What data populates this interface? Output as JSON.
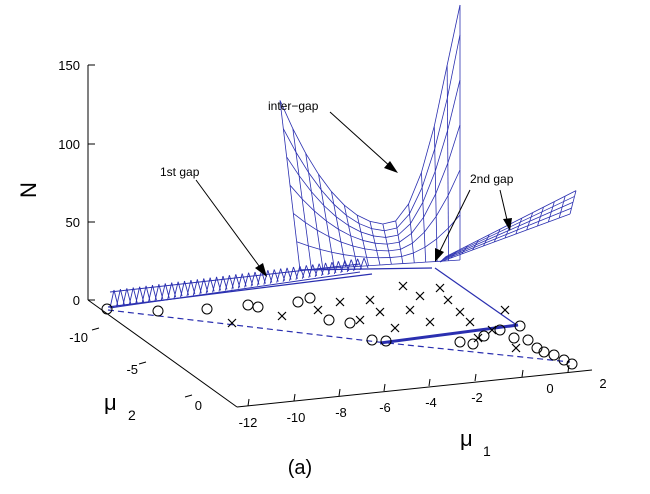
{
  "chart_data": {
    "type": "surface",
    "title": "",
    "panel_label": "(a)",
    "zlabel": "N",
    "xlabel_main": "μ",
    "xlabel_sub": "1",
    "ylabel_main": "μ",
    "ylabel_sub": "2",
    "zticks": [
      0,
      50,
      100,
      150
    ],
    "zlim": [
      0,
      150
    ],
    "xticks": [
      -12,
      -10,
      -8,
      -6,
      -4,
      -2,
      0,
      2
    ],
    "xlim": [
      -12,
      2
    ],
    "yticks": [
      -10,
      -5,
      0
    ],
    "ylim": [
      -12,
      2
    ],
    "annotations": [
      {
        "id": "inter-gap",
        "text": "inter−gap"
      },
      {
        "id": "1st-gap",
        "text": "1st gap"
      },
      {
        "id": "2nd-gap",
        "text": "2nd gap"
      }
    ],
    "colors": {
      "surface": "#2a2fb0",
      "axis": "#000000",
      "boundary": "#2a2fb0",
      "markers": "#000000"
    }
  }
}
